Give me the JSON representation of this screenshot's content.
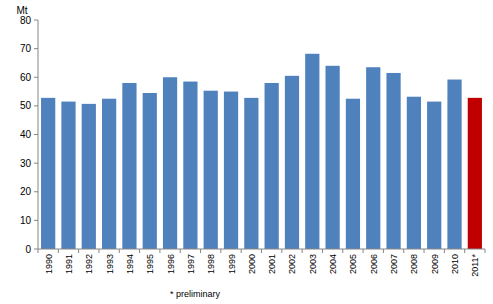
{
  "chart_data": {
    "type": "bar",
    "y_label": "Mt",
    "note": "* preliminary",
    "categories": [
      "1990",
      "1991",
      "1992",
      "1993",
      "1994",
      "1995",
      "1996",
      "1997",
      "1998",
      "1999",
      "2000",
      "2001",
      "2002",
      "2003",
      "2004",
      "2005",
      "2006",
      "2007",
      "2008",
      "2009",
      "2010",
      "2011*"
    ],
    "values": [
      52.8,
      51.5,
      50.7,
      52.5,
      58.0,
      54.5,
      60.0,
      58.5,
      55.3,
      55.0,
      52.8,
      58.0,
      60.5,
      68.2,
      64.0,
      52.5,
      63.5,
      61.5,
      53.2,
      51.5,
      59.2,
      52.8
    ],
    "colors": [
      "#4f81bd",
      "#4f81bd",
      "#4f81bd",
      "#4f81bd",
      "#4f81bd",
      "#4f81bd",
      "#4f81bd",
      "#4f81bd",
      "#4f81bd",
      "#4f81bd",
      "#4f81bd",
      "#4f81bd",
      "#4f81bd",
      "#4f81bd",
      "#4f81bd",
      "#4f81bd",
      "#4f81bd",
      "#4f81bd",
      "#4f81bd",
      "#4f81bd",
      "#4f81bd",
      "#c00000"
    ],
    "ylim": [
      0,
      80
    ],
    "yticks": [
      0,
      10,
      20,
      30,
      40,
      50,
      60,
      70,
      80
    ],
    "grid": false
  }
}
